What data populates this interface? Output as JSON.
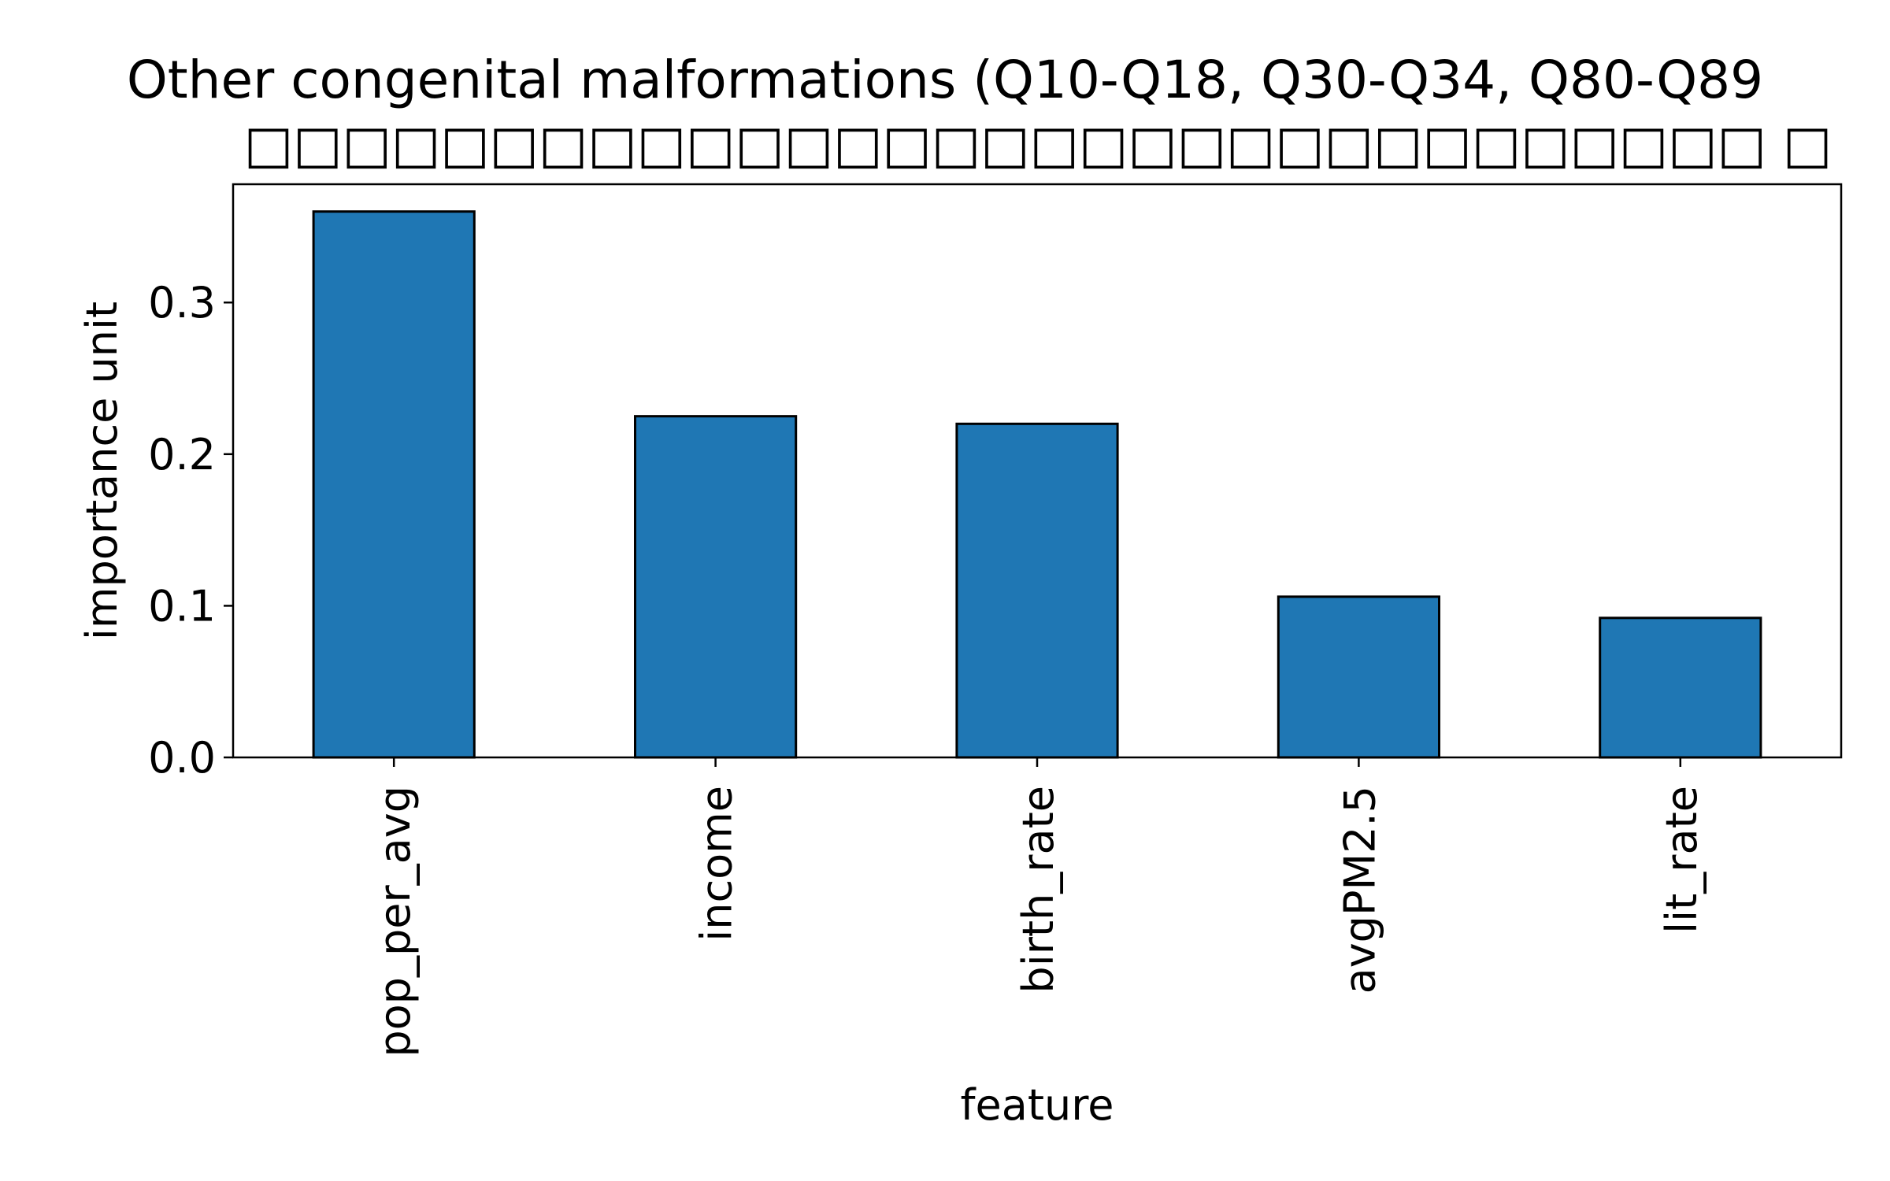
{
  "chart_data": {
    "type": "bar",
    "title": "Other congenital malformations (Q10-Q18, Q30-Q34, Q80-Q89",
    "subtitle": "□□□□□□□□□□□□□□□□□□□□□□□□□□□□□□□ □",
    "xlabel": "feature",
    "ylabel": "importance unit",
    "categories": [
      "pop_per_avg",
      "income",
      "birth_rate",
      "avgPM2.5",
      "lit_rate"
    ],
    "values": [
      0.36,
      0.225,
      0.22,
      0.106,
      0.092
    ],
    "ylim": [
      0,
      0.378
    ],
    "yticks": [
      0.0,
      0.1,
      0.2,
      0.3
    ],
    "ytick_labels": [
      "0.0",
      "0.1",
      "0.2",
      "0.3"
    ],
    "grid": false,
    "legend": null,
    "colors": {
      "bar_fill": "#1f77b4",
      "bar_edge": "#000000",
      "axes": "#000000",
      "background": "#ffffff"
    }
  }
}
